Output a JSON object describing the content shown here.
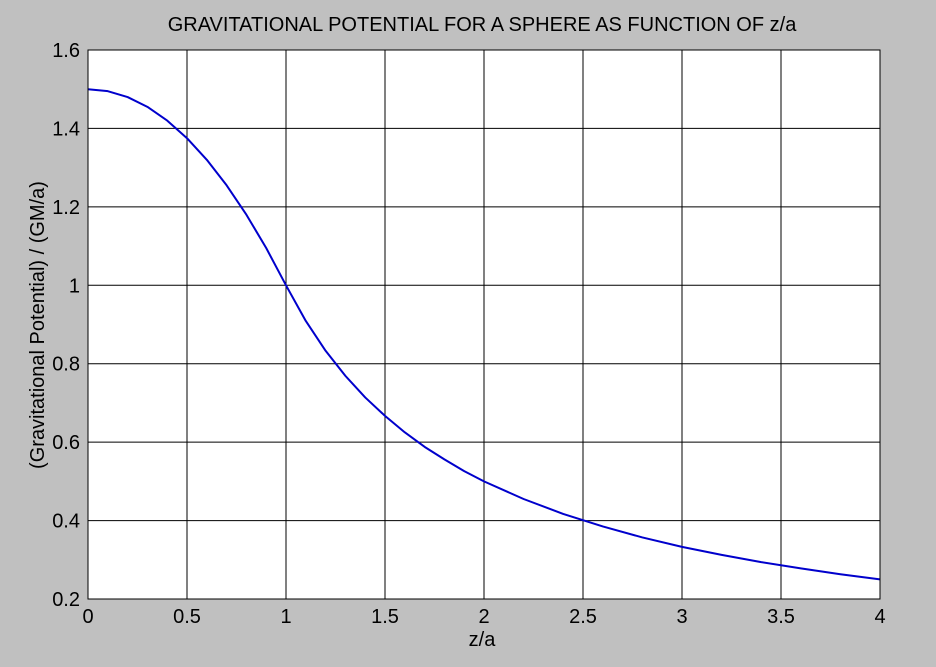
{
  "colors": {
    "figure_background": "#c0c0c0",
    "axes_background": "#ffffff",
    "grid": "#000000",
    "line": "#0000cc"
  },
  "chart_data": {
    "type": "line",
    "title": "GRAVITATIONAL POTENTIAL FOR A SPHERE AS FUNCTION OF z/a",
    "xlabel": "z/a",
    "ylabel": "(Gravitational Potential) / (GM/a)",
    "xlim": [
      0,
      4
    ],
    "ylim": [
      0.2,
      1.6
    ],
    "xticks": [
      0,
      0.5,
      1,
      1.5,
      2,
      2.5,
      3,
      3.5,
      4
    ],
    "xtick_labels": [
      "0",
      "0.5",
      "1",
      "1.5",
      "2",
      "2.5",
      "3",
      "3.5",
      "4"
    ],
    "yticks": [
      0.2,
      0.4,
      0.6,
      0.8,
      1.0,
      1.2,
      1.4,
      1.6
    ],
    "ytick_labels": [
      "0.2",
      "0.4",
      "0.6",
      "0.8",
      "1",
      "1.2",
      "1.4",
      "1.6"
    ],
    "grid": true,
    "legend": "none",
    "series": [
      {
        "color": "#0000cc",
        "x": [
          0,
          0.1,
          0.2,
          0.3,
          0.4,
          0.5,
          0.6,
          0.7,
          0.8,
          0.9,
          1.0,
          1.1,
          1.2,
          1.3,
          1.4,
          1.5,
          1.6,
          1.7,
          1.8,
          1.9,
          2.0,
          2.2,
          2.4,
          2.6,
          2.8,
          3.0,
          3.2,
          3.4,
          3.6,
          3.8,
          4.0
        ],
        "y": [
          1.5,
          1.495,
          1.48,
          1.455,
          1.42,
          1.375,
          1.32,
          1.255,
          1.18,
          1.095,
          1.0,
          0.909,
          0.833,
          0.769,
          0.714,
          0.667,
          0.625,
          0.588,
          0.556,
          0.526,
          0.5,
          0.455,
          0.417,
          0.385,
          0.357,
          0.333,
          0.3125,
          0.294,
          0.278,
          0.263,
          0.25
        ]
      }
    ]
  }
}
